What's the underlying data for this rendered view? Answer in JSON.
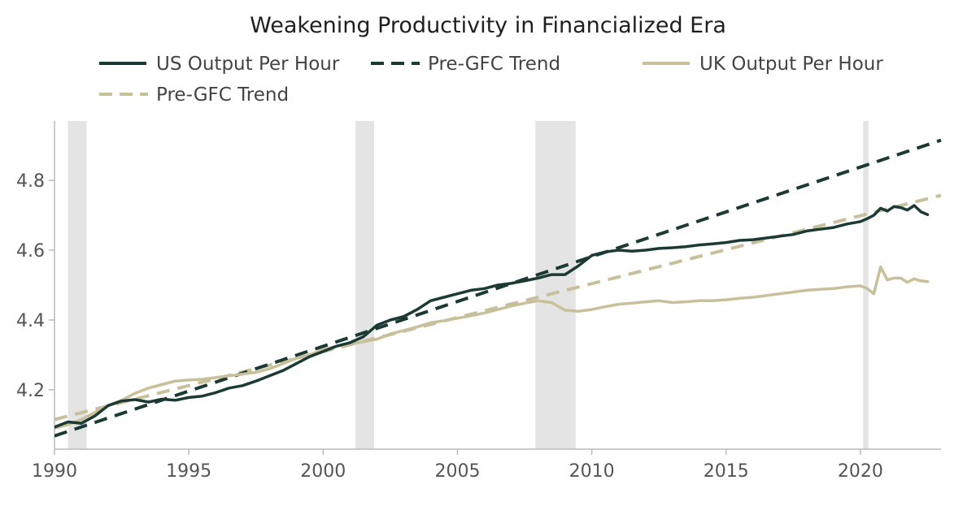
{
  "chart_data": {
    "type": "line",
    "title": "Weakening Productivity in Financialized Era",
    "xlabel": "",
    "ylabel": "",
    "xlim": [
      1990,
      2023
    ],
    "ylim": [
      4.03,
      4.97
    ],
    "x_ticks": [
      1990,
      1995,
      2000,
      2005,
      2010,
      2015,
      2020
    ],
    "y_ticks": [
      4.2,
      4.4,
      4.6,
      4.8
    ],
    "x_tick_labels": [
      "1990",
      "1995",
      "2000",
      "2005",
      "2010",
      "2015",
      "2020"
    ],
    "y_tick_labels": [
      "4.2",
      "4.4",
      "4.6",
      "4.8"
    ],
    "legend_position": "top",
    "colors": {
      "us": "#1b3a34",
      "uk": "#c8bf9b",
      "recession": "#e4e4e4",
      "axis": "#bbbbbb"
    },
    "recessions": [
      [
        1990.5,
        1991.2
      ],
      [
        2001.2,
        2001.9
      ],
      [
        2007.9,
        2009.4
      ],
      [
        2020.1,
        2020.3
      ]
    ],
    "series": [
      {
        "name": "US Output Per Hour",
        "style": "solid",
        "color": "#1b3a34",
        "x": [
          1990,
          1990.5,
          1991,
          1991.5,
          1992,
          1992.5,
          1993,
          1993.5,
          1994,
          1994.5,
          1995,
          1995.5,
          1996,
          1996.5,
          1997,
          1997.5,
          1998,
          1998.5,
          1999,
          1999.5,
          2000,
          2000.5,
          2001,
          2001.5,
          2002,
          2002.5,
          2003,
          2003.5,
          2004,
          2004.5,
          2005,
          2005.5,
          2006,
          2006.5,
          2007,
          2007.5,
          2008,
          2008.5,
          2009,
          2009.5,
          2010,
          2010.5,
          2011,
          2011.5,
          2012,
          2012.5,
          2013,
          2013.5,
          2014,
          2014.5,
          2015,
          2015.5,
          2016,
          2016.5,
          2017,
          2017.5,
          2018,
          2018.5,
          2019,
          2019.5,
          2020,
          2020.25,
          2020.5,
          2020.75,
          2021,
          2021.25,
          2021.5,
          2021.75,
          2022,
          2022.25,
          2022.5
        ],
        "values": [
          4.093,
          4.108,
          4.104,
          4.125,
          4.155,
          4.168,
          4.172,
          4.165,
          4.173,
          4.17,
          4.178,
          4.182,
          4.192,
          4.205,
          4.212,
          4.225,
          4.24,
          4.255,
          4.275,
          4.295,
          4.31,
          4.325,
          4.335,
          4.352,
          4.385,
          4.4,
          4.41,
          4.43,
          4.455,
          4.465,
          4.475,
          4.485,
          4.49,
          4.5,
          4.505,
          4.512,
          4.52,
          4.53,
          4.53,
          4.555,
          4.585,
          4.595,
          4.6,
          4.597,
          4.6,
          4.605,
          4.607,
          4.61,
          4.615,
          4.618,
          4.622,
          4.628,
          4.63,
          4.635,
          4.64,
          4.645,
          4.655,
          4.66,
          4.665,
          4.675,
          4.682,
          4.69,
          4.7,
          4.72,
          4.712,
          4.725,
          4.722,
          4.715,
          4.728,
          4.71,
          4.702
        ]
      },
      {
        "name": "Pre-GFC Trend",
        "style": "dashed",
        "color": "#1b3a34",
        "x": [
          1990,
          2023
        ],
        "values": [
          4.068,
          4.915
        ]
      },
      {
        "name": "UK Output Per Hour",
        "style": "solid",
        "color": "#c8bf9b",
        "x": [
          1990,
          1990.5,
          1991,
          1991.5,
          1992,
          1992.5,
          1993,
          1993.5,
          1994,
          1994.5,
          1995,
          1995.5,
          1996,
          1996.5,
          1997,
          1997.5,
          1998,
          1998.5,
          1999,
          1999.5,
          2000,
          2000.5,
          2001,
          2001.5,
          2002,
          2002.5,
          2003,
          2003.5,
          2004,
          2004.5,
          2005,
          2005.5,
          2006,
          2006.5,
          2007,
          2007.5,
          2008,
          2008.5,
          2009,
          2009.5,
          2010,
          2010.5,
          2011,
          2011.5,
          2012,
          2012.5,
          2013,
          2013.5,
          2014,
          2014.5,
          2015,
          2015.5,
          2016,
          2016.5,
          2017,
          2017.5,
          2018,
          2018.5,
          2019,
          2019.5,
          2020,
          2020.25,
          2020.5,
          2020.75,
          2021,
          2021.25,
          2021.5,
          2021.75,
          2022,
          2022.25,
          2022.5
        ],
        "values": [
          4.09,
          4.1,
          4.115,
          4.135,
          4.155,
          4.17,
          4.19,
          4.205,
          4.215,
          4.225,
          4.228,
          4.23,
          4.235,
          4.24,
          4.245,
          4.25,
          4.26,
          4.275,
          4.29,
          4.3,
          4.315,
          4.325,
          4.33,
          4.338,
          4.345,
          4.36,
          4.37,
          4.38,
          4.392,
          4.398,
          4.405,
          4.412,
          4.42,
          4.43,
          4.44,
          4.448,
          4.455,
          4.45,
          4.428,
          4.425,
          4.43,
          4.438,
          4.445,
          4.448,
          4.452,
          4.455,
          4.45,
          4.452,
          4.455,
          4.455,
          4.458,
          4.462,
          4.465,
          4.47,
          4.475,
          4.48,
          4.485,
          4.488,
          4.49,
          4.495,
          4.498,
          4.49,
          4.475,
          4.552,
          4.515,
          4.52,
          4.52,
          4.508,
          4.518,
          4.512,
          4.51
        ]
      },
      {
        "name": "Pre-GFC Trend",
        "style": "dashed",
        "color": "#c8bf9b",
        "x": [
          1990,
          2023
        ],
        "values": [
          4.115,
          4.757
        ]
      }
    ]
  }
}
